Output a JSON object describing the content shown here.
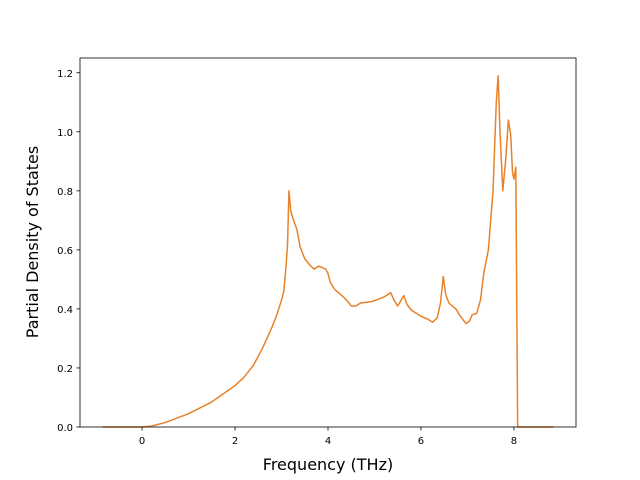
{
  "chart_data": {
    "type": "line",
    "x_label": "Frequency (THz)",
    "y_label": "Partial Density of States",
    "xlim": [
      -1.335,
      9.335
    ],
    "ylim": [
      0,
      1.25
    ],
    "xticks": [
      0,
      2,
      4,
      6,
      8
    ],
    "yticks": [
      {
        "value": 0,
        "label": "0.0"
      },
      {
        "value": 0.2,
        "label": "0.2"
      },
      {
        "value": 0.4,
        "label": "0.4"
      },
      {
        "value": 0.6,
        "label": "0.6"
      },
      {
        "value": 0.8,
        "label": "0.8"
      },
      {
        "value": 1.0,
        "label": "1.0"
      },
      {
        "value": 1.2,
        "label": "1.2"
      }
    ],
    "grid": false,
    "x": [
      -0.85,
      0,
      0.2,
      0.5,
      1,
      1.5,
      2,
      2.2,
      2.4,
      2.6,
      2.8,
      2.9,
      3.0,
      3.05,
      3.1,
      3.13,
      3.16,
      3.2,
      3.28,
      3.33,
      3.4,
      3.5,
      3.6,
      3.7,
      3.8,
      3.95,
      4.0,
      4.05,
      4.15,
      4.3,
      4.4,
      4.5,
      4.6,
      4.7,
      4.95,
      5.2,
      5.35,
      5.42,
      5.5,
      5.63,
      5.7,
      5.8,
      6.0,
      6.15,
      6.25,
      6.35,
      6.42,
      6.48,
      6.53,
      6.6,
      6.75,
      6.85,
      6.97,
      7.05,
      7.1,
      7.2,
      7.28,
      7.35,
      7.45,
      7.55,
      7.62,
      7.66,
      7.7,
      7.76,
      7.82,
      7.88,
      7.93,
      7.97,
      8.0,
      8.04,
      8.08,
      8.85
    ],
    "series": [
      {
        "color": "#e8822a",
        "values": [
          0,
          0,
          0.003,
          0.015,
          0.045,
          0.085,
          0.14,
          0.17,
          0.21,
          0.27,
          0.34,
          0.38,
          0.43,
          0.46,
          0.55,
          0.62,
          0.8,
          0.73,
          0.69,
          0.67,
          0.61,
          0.57,
          0.55,
          0.535,
          0.545,
          0.535,
          0.52,
          0.49,
          0.465,
          0.445,
          0.43,
          0.41,
          0.41,
          0.42,
          0.425,
          0.44,
          0.455,
          0.43,
          0.41,
          0.445,
          0.415,
          0.395,
          0.375,
          0.365,
          0.355,
          0.37,
          0.42,
          0.51,
          0.45,
          0.42,
          0.4,
          0.375,
          0.35,
          0.36,
          0.38,
          0.385,
          0.43,
          0.52,
          0.6,
          0.8,
          1.1,
          1.19,
          1.0,
          0.8,
          0.9,
          1.04,
          0.99,
          0.86,
          0.84,
          0.88,
          0,
          0
        ]
      }
    ]
  }
}
